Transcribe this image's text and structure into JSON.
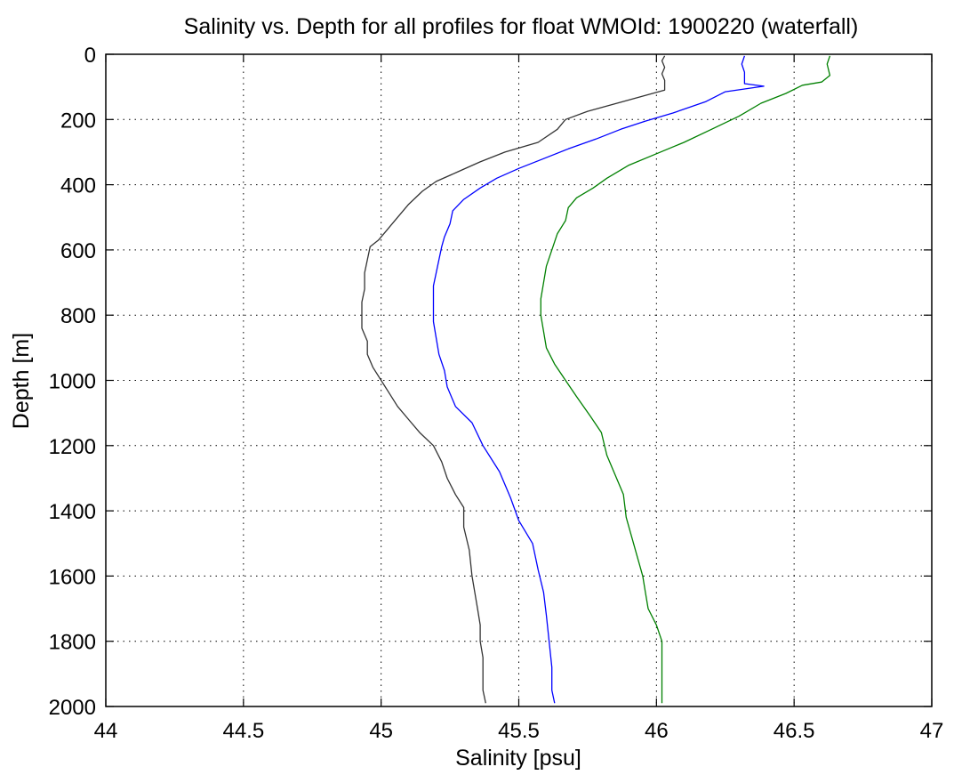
{
  "chart_data": {
    "type": "line",
    "title": "Salinity vs. Depth for all profiles for float WMOId: 1900220 (waterfall)",
    "xlabel": "Salinity [psu]",
    "ylabel": "Depth [m]",
    "xlim": [
      44,
      47
    ],
    "ylim": [
      0,
      2000
    ],
    "y_reversed": true,
    "grid": "dotted",
    "xticks": [
      "44",
      "44.5",
      "45",
      "45.5",
      "46",
      "46.5",
      "47"
    ],
    "yticks": [
      "0",
      "200",
      "400",
      "600",
      "800",
      "1000",
      "1200",
      "1400",
      "1600",
      "1800",
      "2000"
    ],
    "xtick_values": [
      44,
      44.5,
      45,
      45.5,
      46,
      46.5,
      47
    ],
    "ytick_values": [
      0,
      200,
      400,
      600,
      800,
      1000,
      1200,
      1400,
      1600,
      1800,
      2000
    ],
    "series": [
      {
        "color": "#333333",
        "points": [
          [
            46.03,
            5
          ],
          [
            46.02,
            20
          ],
          [
            46.03,
            40
          ],
          [
            46.02,
            60
          ],
          [
            46.03,
            80
          ],
          [
            46.03,
            110
          ],
          [
            45.75,
            175
          ],
          [
            45.67,
            200
          ],
          [
            45.64,
            230
          ],
          [
            45.57,
            270
          ],
          [
            45.45,
            300
          ],
          [
            45.36,
            330
          ],
          [
            45.28,
            360
          ],
          [
            45.2,
            390
          ],
          [
            45.15,
            420
          ],
          [
            45.1,
            460
          ],
          [
            45.05,
            510
          ],
          [
            45.02,
            540
          ],
          [
            44.99,
            570
          ],
          [
            44.96,
            590
          ],
          [
            44.95,
            630
          ],
          [
            44.94,
            670
          ],
          [
            44.94,
            720
          ],
          [
            44.93,
            760
          ],
          [
            44.93,
            800
          ],
          [
            44.93,
            840
          ],
          [
            44.95,
            880
          ],
          [
            44.95,
            920
          ],
          [
            44.97,
            960
          ],
          [
            45.0,
            1000
          ],
          [
            45.03,
            1040
          ],
          [
            45.06,
            1080
          ],
          [
            45.1,
            1120
          ],
          [
            45.14,
            1160
          ],
          [
            45.19,
            1200
          ],
          [
            45.22,
            1250
          ],
          [
            45.24,
            1300
          ],
          [
            45.27,
            1350
          ],
          [
            45.3,
            1390
          ],
          [
            45.3,
            1450
          ],
          [
            45.32,
            1520
          ],
          [
            45.33,
            1600
          ],
          [
            45.34,
            1650
          ],
          [
            45.35,
            1700
          ],
          [
            45.36,
            1750
          ],
          [
            45.36,
            1800
          ],
          [
            45.37,
            1850
          ],
          [
            45.37,
            1900
          ],
          [
            45.37,
            1950
          ],
          [
            45.38,
            1990
          ]
        ]
      },
      {
        "color": "#0000ff",
        "points": [
          [
            46.32,
            5
          ],
          [
            46.31,
            30
          ],
          [
            46.32,
            55
          ],
          [
            46.32,
            90
          ],
          [
            46.39,
            98
          ],
          [
            46.25,
            115
          ],
          [
            46.18,
            145
          ],
          [
            46.06,
            180
          ],
          [
            45.96,
            205
          ],
          [
            45.87,
            230
          ],
          [
            45.78,
            260
          ],
          [
            45.68,
            290
          ],
          [
            45.59,
            320
          ],
          [
            45.5,
            350
          ],
          [
            45.42,
            380
          ],
          [
            45.36,
            410
          ],
          [
            45.3,
            445
          ],
          [
            45.26,
            480
          ],
          [
            45.25,
            520
          ],
          [
            45.23,
            560
          ],
          [
            45.22,
            590
          ],
          [
            45.21,
            630
          ],
          [
            45.2,
            670
          ],
          [
            45.19,
            710
          ],
          [
            45.19,
            760
          ],
          [
            45.19,
            820
          ],
          [
            45.2,
            870
          ],
          [
            45.21,
            920
          ],
          [
            45.23,
            970
          ],
          [
            45.24,
            1020
          ],
          [
            45.27,
            1080
          ],
          [
            45.33,
            1130
          ],
          [
            45.37,
            1200
          ],
          [
            45.43,
            1280
          ],
          [
            45.47,
            1360
          ],
          [
            45.5,
            1430
          ],
          [
            45.55,
            1500
          ],
          [
            45.57,
            1580
          ],
          [
            45.59,
            1650
          ],
          [
            45.6,
            1720
          ],
          [
            45.61,
            1800
          ],
          [
            45.62,
            1880
          ],
          [
            45.62,
            1950
          ],
          [
            45.63,
            1990
          ]
        ]
      },
      {
        "color": "#008000",
        "points": [
          [
            46.63,
            5
          ],
          [
            46.62,
            30
          ],
          [
            46.63,
            65
          ],
          [
            46.6,
            85
          ],
          [
            46.53,
            95
          ],
          [
            46.47,
            120
          ],
          [
            46.38,
            150
          ],
          [
            46.3,
            190
          ],
          [
            46.2,
            230
          ],
          [
            46.1,
            270
          ],
          [
            46.0,
            305
          ],
          [
            45.9,
            340
          ],
          [
            45.82,
            380
          ],
          [
            45.77,
            410
          ],
          [
            45.71,
            440
          ],
          [
            45.68,
            470
          ],
          [
            45.67,
            510
          ],
          [
            45.64,
            550
          ],
          [
            45.62,
            600
          ],
          [
            45.6,
            650
          ],
          [
            45.59,
            700
          ],
          [
            45.58,
            750
          ],
          [
            45.58,
            800
          ],
          [
            45.59,
            850
          ],
          [
            45.6,
            900
          ],
          [
            45.63,
            950
          ],
          [
            45.67,
            1000
          ],
          [
            45.71,
            1050
          ],
          [
            45.76,
            1110
          ],
          [
            45.8,
            1160
          ],
          [
            45.82,
            1230
          ],
          [
            45.85,
            1290
          ],
          [
            45.88,
            1350
          ],
          [
            45.89,
            1420
          ],
          [
            45.91,
            1480
          ],
          [
            45.93,
            1540
          ],
          [
            45.95,
            1600
          ],
          [
            45.96,
            1650
          ],
          [
            45.97,
            1700
          ],
          [
            46.0,
            1750
          ],
          [
            46.02,
            1800
          ],
          [
            46.02,
            1860
          ],
          [
            46.02,
            1920
          ],
          [
            46.02,
            1990
          ]
        ]
      }
    ]
  }
}
